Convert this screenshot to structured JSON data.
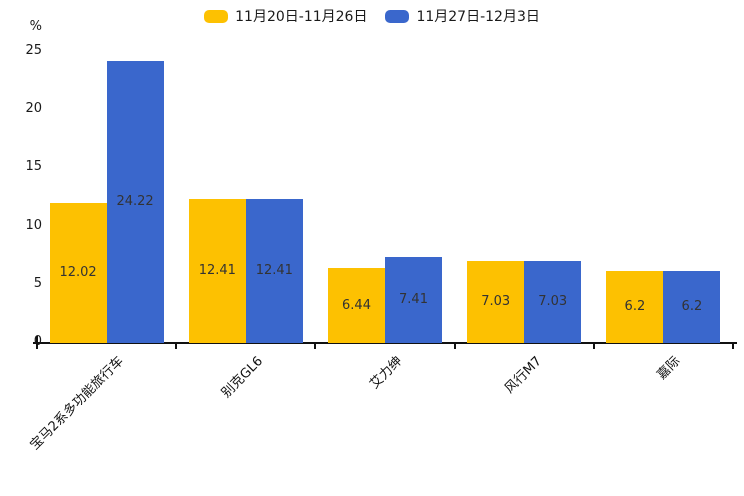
{
  "chart_data": {
    "type": "bar",
    "title": "",
    "categories": [
      "宝马2系多功能旅行车",
      "别克GL6",
      "艾力绅",
      "风行M7",
      "嘉际"
    ],
    "series": [
      {
        "name": "11月20日-11月26日",
        "color": "#FDC101",
        "values": [
          12.02,
          12.41,
          6.44,
          7.03,
          6.2
        ]
      },
      {
        "name": "11月27日-12月3日",
        "color": "#3A67CC",
        "values": [
          24.22,
          12.41,
          7.41,
          7.03,
          6.2
        ]
      }
    ],
    "ylabel": "%",
    "yticks": [
      0,
      5,
      10,
      15,
      20,
      25
    ],
    "ylim": [
      0,
      25
    ],
    "grid": false,
    "legend_position": "top-center",
    "value_labels_shown": true,
    "value_label_color": "#333333",
    "axis_color": "#111111"
  }
}
